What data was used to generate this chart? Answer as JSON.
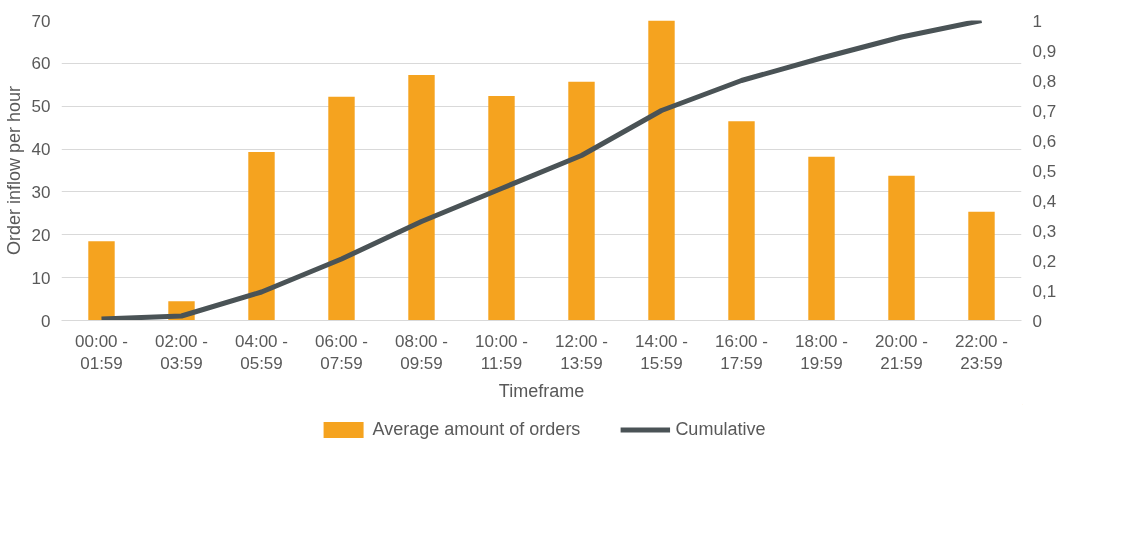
{
  "chart_data": {
    "type": "bar",
    "xlabel": "Timeframe",
    "ylabel": "Order inflow per hour",
    "categories": [
      "00:00 - 01:59",
      "02:00 - 03:59",
      "04:00 - 05:59",
      "06:00 - 07:59",
      "08:00 - 09:59",
      "10:00 - 11:59",
      "12:00 - 13:59",
      "14:00 - 15:59",
      "16:00 - 17:59",
      "18:00 - 19:59",
      "20:00 - 21:59",
      "22:00 - 23:59"
    ],
    "series": [
      {
        "name": "Average amount of orders",
        "type": "bar",
        "color": "#f5a31f",
        "values": [
          18.5,
          4.5,
          39.3,
          52.2,
          57.3,
          52.4,
          55.7,
          70,
          46.5,
          38.2,
          33.8,
          25.4
        ]
      },
      {
        "name": "Cumulative",
        "type": "line",
        "axis": "y2",
        "color": "#4a5356",
        "values": [
          0.005,
          0.015,
          0.095,
          0.205,
          0.33,
          0.44,
          0.55,
          0.7,
          0.8,
          0.875,
          0.945,
          1.0
        ]
      }
    ],
    "ylim": [
      0,
      70
    ],
    "yticks": [
      0,
      10,
      20,
      30,
      40,
      50,
      60,
      70
    ],
    "y2lim": [
      0,
      1
    ],
    "y2ticks": [
      0,
      {
        "value": 0.1,
        "label": "0,1"
      },
      {
        "value": 0.2,
        "label": "0,2"
      },
      {
        "value": 0.3,
        "label": "0,3"
      },
      {
        "value": 0.4,
        "label": "0,4"
      },
      {
        "value": 0.5,
        "label": "0,5"
      },
      {
        "value": 0.6,
        "label": "0,6"
      },
      {
        "value": 0.7,
        "label": "0,7"
      },
      {
        "value": 0.8,
        "label": "0,8"
      },
      {
        "value": 0.9,
        "label": "0,9"
      },
      1
    ],
    "grid": "y",
    "legend": "bottom",
    "line_style": "solid",
    "marker": "none"
  }
}
